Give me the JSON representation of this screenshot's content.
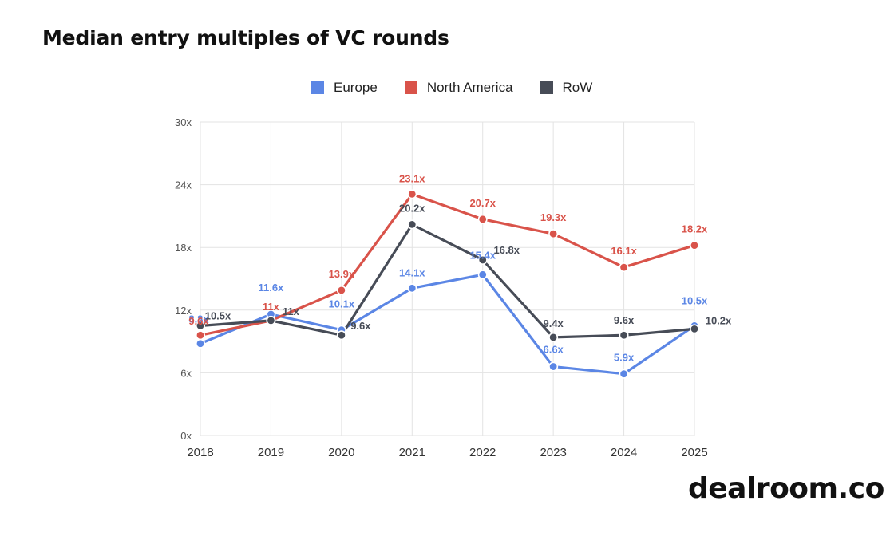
{
  "title": "Median entry multiples of VC rounds",
  "brand": "dealroom.co",
  "colors": {
    "Europe": "#5b86e5",
    "North America": "#d9534a",
    "RoW": "#474c57",
    "grid": "#e3e3e3",
    "tick": "#555555"
  },
  "chart_data": {
    "type": "line",
    "title": "Median entry multiples of VC rounds",
    "xlabel": "",
    "ylabel": "",
    "categories": [
      "2018",
      "2019",
      "2020",
      "2021",
      "2022",
      "2023",
      "2024",
      "2025"
    ],
    "ylim": [
      0,
      30
    ],
    "yticks": [
      0,
      6,
      12,
      18,
      24,
      30
    ],
    "ytick_labels": [
      "0x",
      "6x",
      "12x",
      "18x",
      "24x",
      "30x"
    ],
    "grid": true,
    "legend": "top-center",
    "series": [
      {
        "name": "Europe",
        "color": "#5b86e5",
        "values": [
          8.8,
          11.6,
          10.1,
          14.1,
          15.4,
          6.6,
          5.9,
          10.5
        ],
        "labels": [
          "8.8x",
          "11.6x",
          "10.1x",
          "14.1x",
          "15.4x",
          "6.6x",
          "5.9x",
          "10.5x"
        ]
      },
      {
        "name": "North America",
        "color": "#d9534a",
        "values": [
          9.6,
          11,
          13.9,
          23.1,
          20.7,
          19.3,
          16.1,
          18.2
        ],
        "labels": [
          "9.6x",
          "11x",
          "13.9x",
          "23.1x",
          "20.7x",
          "19.3x",
          "16.1x",
          "18.2x"
        ]
      },
      {
        "name": "RoW",
        "color": "#474c57",
        "values": [
          10.5,
          11,
          9.6,
          20.2,
          16.8,
          9.4,
          9.6,
          10.2
        ],
        "labels": [
          "10.5x",
          "11x",
          "9.6x",
          "20.2x",
          "16.8x",
          "9.4x",
          "9.6x",
          "10.2x"
        ]
      }
    ]
  }
}
